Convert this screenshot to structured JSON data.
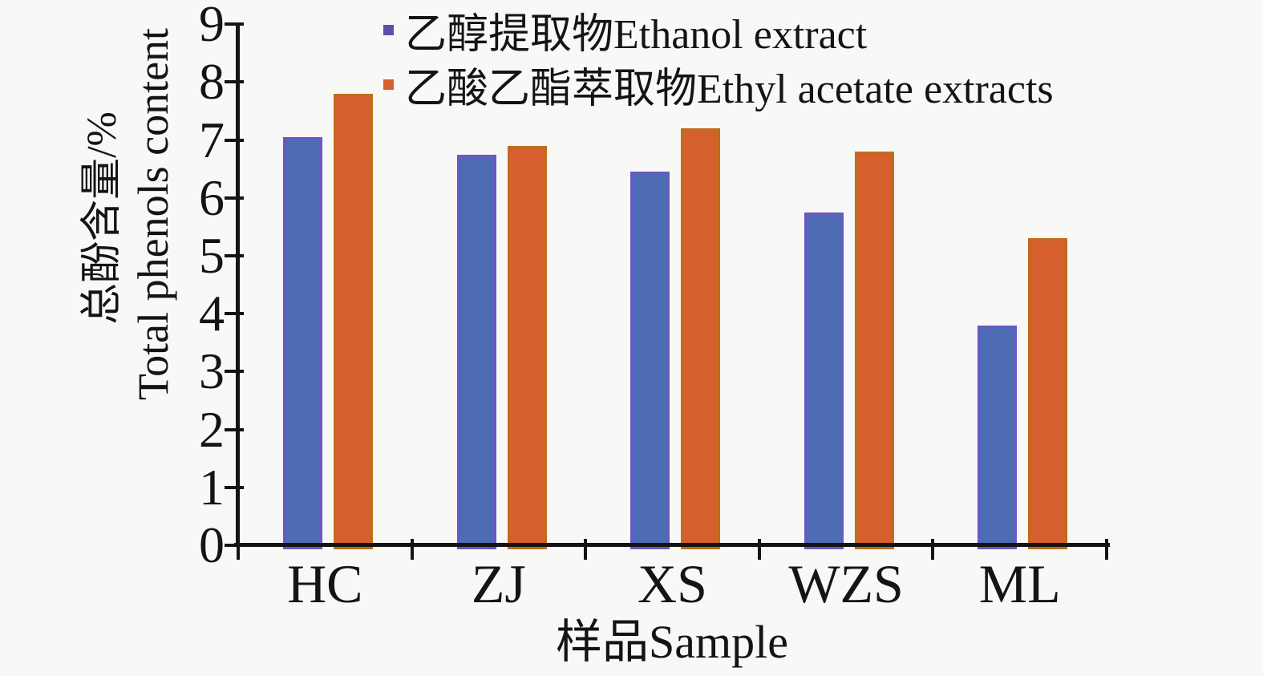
{
  "figure": {
    "background": "#f8f8f7",
    "axis_color": "#141414",
    "text_color": "#141414"
  },
  "chart_data": {
    "type": "bar",
    "categories": [
      "HC",
      "ZJ",
      "XS",
      "WZS",
      "ML"
    ],
    "series": [
      {
        "name": "乙醇提取物Ethanol extract",
        "fill": "#4e6bb4",
        "edge": "#6a57c4",
        "marker": "#5a4fab",
        "values": [
          7.05,
          6.75,
          6.45,
          5.75,
          3.8
        ]
      },
      {
        "name": "乙酸乙酯萃取物Ethyl acetate extracts",
        "fill": "#d65f2e",
        "edge": "#c06c1c",
        "marker": "#d7622c",
        "values": [
          7.8,
          6.9,
          7.2,
          6.8,
          5.3
        ]
      }
    ],
    "title": "",
    "xlabel": "样品Sample",
    "ylabel_zh": "总酚含量/%",
    "ylabel_en": "Total phenols content",
    "ylim": [
      0,
      9
    ],
    "yticks": [
      0,
      1,
      2,
      3,
      4,
      5,
      6,
      7,
      8,
      9
    ],
    "legend_position": "upper center",
    "grid": false
  }
}
